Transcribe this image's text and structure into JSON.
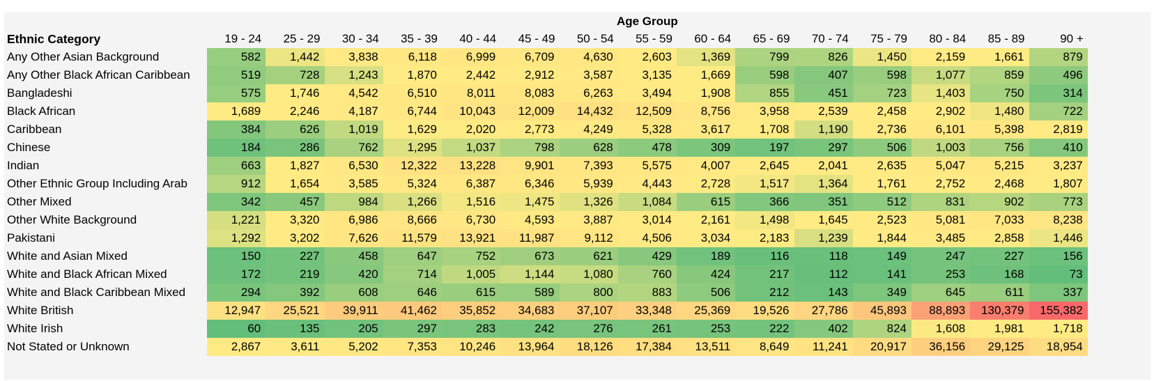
{
  "chart_data": {
    "type": "heatmap",
    "title": "Age Group",
    "row_header": "Ethnic Category",
    "columns": [
      "19 - 24",
      "25 - 29",
      "30 - 34",
      "35 - 39",
      "40 - 44",
      "45 - 49",
      "50 - 54",
      "55 - 59",
      "60 - 64",
      "65 - 69",
      "70 - 74",
      "75 - 79",
      "80 - 84",
      "85 - 89",
      "90 +"
    ],
    "rows": [
      {
        "label": "Any Other Asian Background",
        "values": [
          582,
          1442,
          3838,
          6118,
          6999,
          6709,
          4630,
          2603,
          1369,
          799,
          826,
          1450,
          2159,
          1661,
          879
        ]
      },
      {
        "label": "Any Other Black African Caribbean",
        "values": [
          519,
          728,
          1243,
          1870,
          2442,
          2912,
          3587,
          3135,
          1669,
          598,
          407,
          598,
          1077,
          859,
          496
        ]
      },
      {
        "label": "Bangladeshi",
        "values": [
          575,
          1746,
          4542,
          6510,
          8011,
          8083,
          6263,
          3494,
          1908,
          855,
          451,
          723,
          1403,
          750,
          314
        ]
      },
      {
        "label": "Black African",
        "values": [
          1689,
          2246,
          4187,
          6744,
          10043,
          12009,
          14432,
          12509,
          8756,
          3958,
          2539,
          2458,
          2902,
          1480,
          722
        ]
      },
      {
        "label": "Caribbean",
        "values": [
          384,
          626,
          1019,
          1629,
          2020,
          2773,
          4249,
          5328,
          3617,
          1708,
          1190,
          2736,
          6101,
          5398,
          2819
        ]
      },
      {
        "label": "Chinese",
        "values": [
          184,
          286,
          762,
          1295,
          1037,
          798,
          628,
          478,
          309,
          197,
          297,
          506,
          1003,
          756,
          410
        ]
      },
      {
        "label": "Indian",
        "values": [
          663,
          1827,
          6530,
          12322,
          13228,
          9901,
          7393,
          5575,
          4007,
          2645,
          2041,
          2635,
          5047,
          5215,
          3237
        ]
      },
      {
        "label": "Other Ethnic Group Including Arab",
        "values": [
          912,
          1654,
          3585,
          5324,
          6387,
          6346,
          5939,
          4443,
          2728,
          1517,
          1364,
          1761,
          2752,
          2468,
          1807
        ]
      },
      {
        "label": "Other Mixed",
        "values": [
          342,
          457,
          984,
          1266,
          1516,
          1475,
          1326,
          1084,
          615,
          366,
          351,
          512,
          831,
          902,
          773
        ]
      },
      {
        "label": "Other White Background",
        "values": [
          1221,
          3320,
          6986,
          8666,
          6730,
          4593,
          3887,
          3014,
          2161,
          1498,
          1645,
          2523,
          5081,
          7033,
          8238
        ]
      },
      {
        "label": "Pakistani",
        "values": [
          1292,
          3202,
          7626,
          11579,
          13921,
          11987,
          9112,
          4506,
          3034,
          2183,
          1239,
          1844,
          3485,
          2858,
          1446
        ]
      },
      {
        "label": "White and Asian Mixed",
        "values": [
          150,
          227,
          458,
          647,
          752,
          673,
          621,
          429,
          189,
          116,
          118,
          149,
          247,
          227,
          156
        ]
      },
      {
        "label": "White and Black African Mixed",
        "values": [
          172,
          219,
          420,
          714,
          1005,
          1144,
          1080,
          760,
          424,
          217,
          112,
          141,
          253,
          168,
          73
        ]
      },
      {
        "label": "White and Black Caribbean Mixed",
        "values": [
          294,
          392,
          608,
          646,
          615,
          589,
          800,
          883,
          506,
          212,
          143,
          349,
          645,
          611,
          337
        ]
      },
      {
        "label": "White British",
        "values": [
          12947,
          25521,
          39911,
          41462,
          35852,
          34683,
          37107,
          33348,
          25369,
          19526,
          27786,
          45893,
          88893,
          130379,
          155382
        ]
      },
      {
        "label": "White Irish",
        "values": [
          60,
          135,
          205,
          297,
          283,
          242,
          276,
          261,
          253,
          222,
          402,
          824,
          1608,
          1981,
          1718
        ]
      },
      {
        "label": "Not Stated or Unknown",
        "values": [
          2867,
          3611,
          5202,
          7353,
          10246,
          13964,
          18126,
          17384,
          13511,
          8649,
          11241,
          20917,
          36156,
          29125,
          18954
        ]
      }
    ],
    "color_scale": {
      "low": "#63be7b",
      "mid": "#ffeb84",
      "high": "#f8696b"
    },
    "grid": false
  }
}
